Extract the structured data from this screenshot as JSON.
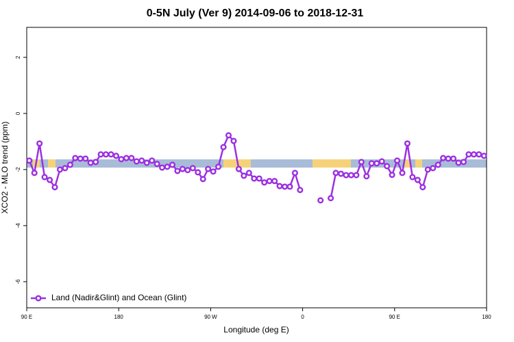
{
  "chart_data": {
    "type": "line",
    "title": "0-5N July (Ver 9)   2014-09-06 to 2018-12-31",
    "x_label": "Longitude (deg E)",
    "y_label": "XCO2 - MLO trend (ppm)",
    "xlim": [
      90,
      540
    ],
    "xticks": [
      {
        "value": 90,
        "label": "90 E"
      },
      {
        "value": 180,
        "label": "180"
      },
      {
        "value": 270,
        "label": "90 W"
      },
      {
        "value": 360,
        "label": "0"
      },
      {
        "value": 450,
        "label": "90 E"
      },
      {
        "value": 540,
        "label": "180"
      }
    ],
    "ylim": [
      -6.93,
      3.07
    ],
    "yticks": [
      -6,
      -4,
      -2,
      0,
      2
    ],
    "legend": "bottom-left",
    "x": [
      92.5,
      97.5,
      102.5,
      107.5,
      112.5,
      117.5,
      122.5,
      127.5,
      132.5,
      137.5,
      142.5,
      147.5,
      152.5,
      157.5,
      162.5,
      167.5,
      172.5,
      177.5,
      182.5,
      187.5,
      192.5,
      197.5,
      202.5,
      207.5,
      212.5,
      217.5,
      222.5,
      227.5,
      232.5,
      237.5,
      242.5,
      247.5,
      252.5,
      257.5,
      262.5,
      267.5,
      272.5,
      277.5,
      282.5,
      287.5,
      292.5,
      297.5,
      302.5,
      307.5,
      312.5,
      317.5,
      322.5,
      327.5,
      332.5,
      337.5,
      342.5,
      347.5,
      352.5,
      357.5,
      362.5,
      367.5,
      372.5,
      377.5,
      382.5,
      387.5,
      392.5,
      397.5,
      402.5,
      407.5,
      412.5,
      417.5,
      422.5,
      427.5,
      432.5,
      437.5,
      442.5,
      447.5,
      452.5,
      457.5,
      462.5,
      467.5,
      472.5,
      477.5,
      482.5,
      487.5,
      492.5,
      497.5,
      502.5,
      507.5,
      512.5,
      517.5,
      522.5,
      527.5,
      532.5,
      537.5
    ],
    "series": [
      {
        "name": "Land (Nadir&Glint) and Ocean (Glint)",
        "color": "#9b30e0",
        "values": [
          -1.68,
          -2.12,
          -1.07,
          -2.27,
          -2.37,
          -2.63,
          -2.0,
          -1.95,
          -1.83,
          -1.59,
          -1.61,
          -1.61,
          -1.76,
          -1.73,
          -1.46,
          -1.46,
          -1.46,
          -1.51,
          -1.63,
          -1.59,
          -1.59,
          -1.71,
          -1.68,
          -1.76,
          -1.68,
          -1.8,
          -1.93,
          -1.9,
          -1.83,
          -2.05,
          -1.98,
          -2.02,
          -1.95,
          -2.1,
          -2.34,
          -1.98,
          -2.07,
          -1.9,
          -1.2,
          -0.78,
          -0.98,
          -1.98,
          -2.22,
          -2.12,
          -2.32,
          -2.32,
          -2.46,
          -2.41,
          -2.41,
          -2.59,
          -2.61,
          -2.61,
          -2.12,
          -2.73,
          null,
          null,
          null,
          -3.1,
          null,
          -3.02,
          -2.12,
          -2.15,
          -2.2,
          -2.2,
          -2.2,
          -1.73,
          -2.24,
          -1.78,
          -1.78,
          -1.71,
          -1.88,
          -2.19,
          -1.68,
          -2.12,
          -1.07,
          -2.27,
          -2.37,
          -2.63,
          -2.0,
          -1.95,
          -1.83,
          -1.59,
          -1.61,
          -1.61,
          -1.76,
          -1.73,
          -1.46,
          -1.46,
          -1.46,
          -1.51
        ]
      }
    ]
  }
}
